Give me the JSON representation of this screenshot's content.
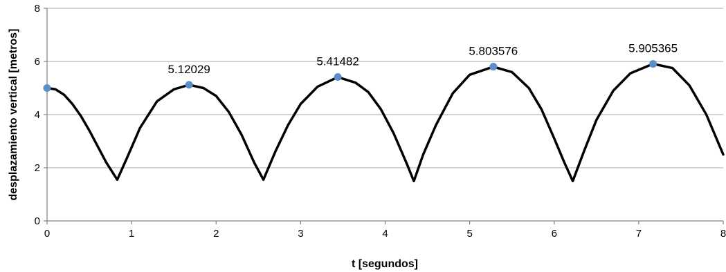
{
  "chart_data": {
    "type": "line",
    "xlabel": "t [segundos]",
    "ylabel": "desplazamiento vertical [metros]",
    "xlim": [
      0,
      8
    ],
    "ylim": [
      0,
      8
    ],
    "x_ticks": [
      0,
      1,
      2,
      3,
      4,
      5,
      6,
      7,
      8
    ],
    "y_ticks": [
      0,
      2,
      4,
      6,
      8
    ],
    "grid": "horizontal",
    "legend": "none",
    "line_color": "#000000",
    "marker_color": "#5b8fc9",
    "series": [
      {
        "x": [
          0,
          0.1,
          0.2,
          0.3,
          0.4,
          0.5,
          0.6,
          0.7,
          0.83,
          0.95,
          1.1,
          1.3,
          1.5,
          1.68,
          1.85,
          2.0,
          2.15,
          2.3,
          2.45,
          2.56,
          2.7,
          2.85,
          3.0,
          3.2,
          3.44,
          3.65,
          3.8,
          3.95,
          4.1,
          4.25,
          4.34,
          4.45,
          4.6,
          4.8,
          5.0,
          5.28,
          5.5,
          5.7,
          5.85,
          6.0,
          6.12,
          6.22,
          6.35,
          6.5,
          6.7,
          6.9,
          7.17,
          7.4,
          7.6,
          7.8,
          8.0
        ],
        "y": [
          5.0,
          4.95,
          4.75,
          4.4,
          3.95,
          3.4,
          2.8,
          2.2,
          1.55,
          2.4,
          3.5,
          4.5,
          4.95,
          5.12,
          5.0,
          4.7,
          4.1,
          3.25,
          2.2,
          1.55,
          2.6,
          3.6,
          4.4,
          5.05,
          5.41,
          5.2,
          4.85,
          4.2,
          3.3,
          2.2,
          1.5,
          2.5,
          3.6,
          4.8,
          5.5,
          5.8,
          5.6,
          5.0,
          4.2,
          3.1,
          2.2,
          1.5,
          2.6,
          3.8,
          4.9,
          5.55,
          5.91,
          5.75,
          5.1,
          4.0,
          2.5
        ]
      }
    ],
    "markers": [
      {
        "x": 0,
        "y": 5.0,
        "label": ""
      },
      {
        "x": 1.68,
        "y": 5.12029,
        "label": "5.12029"
      },
      {
        "x": 3.44,
        "y": 5.41482,
        "label": "5.41482"
      },
      {
        "x": 5.28,
        "y": 5.803576,
        "label": "5.803576"
      },
      {
        "x": 7.17,
        "y": 5.905365,
        "label": "5.905365"
      }
    ]
  }
}
